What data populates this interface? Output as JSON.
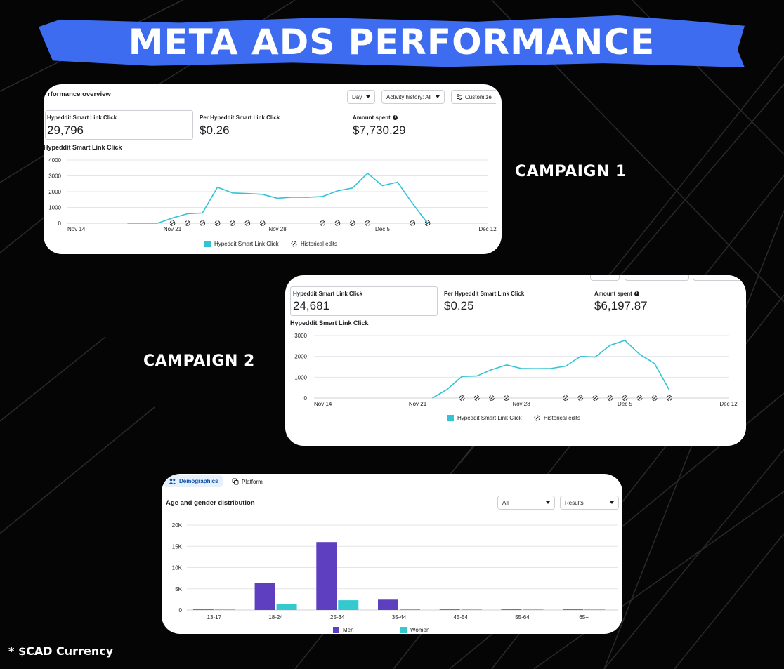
{
  "title": "META ADS PERFORMANCE",
  "footnote": "* $CAD Currency",
  "colors": {
    "accent": "#3d6cf0",
    "line": "#34c3d5",
    "men": "#5e3fc0",
    "women": "#34c9cf"
  },
  "campaign1": {
    "label": "CAMPAIGN 1",
    "overview_title": "rformance overview",
    "controls": {
      "day": "Day",
      "activity": "Activity history: All",
      "customize": "Customize"
    },
    "metrics": [
      {
        "label": "Hypeddit Smart Link Click",
        "value": "29,796"
      },
      {
        "label": "Per Hypeddit Smart Link Click",
        "value": "$0.26"
      },
      {
        "label": "Amount spent",
        "value": "$7,730.29",
        "info_icon": "info-icon"
      }
    ],
    "chart_title": "Hypeddit Smart Link Click",
    "legend": {
      "series": "Hypeddit Smart Link Click",
      "edits": "Historical edits"
    },
    "chart_data": {
      "type": "line",
      "y_ticks": [
        "0",
        "1000",
        "2000",
        "3000",
        "4000"
      ],
      "x_tick_labels": [
        "Nov 14",
        "Nov 21",
        "Nov 28",
        "Dec 5",
        "Dec 12"
      ],
      "ylim": [
        0,
        4000
      ],
      "x": [
        "Nov 18",
        "Nov 19",
        "Nov 20",
        "Nov 21",
        "Nov 22",
        "Nov 23",
        "Nov 24",
        "Nov 25",
        "Nov 26",
        "Nov 27",
        "Nov 28",
        "Nov 29",
        "Nov 30",
        "Dec 1",
        "Dec 2",
        "Dec 3",
        "Dec 4",
        "Dec 5",
        "Dec 6",
        "Dec 7",
        "Dec 8"
      ],
      "series": [
        {
          "name": "Hypeddit Smart Link Click",
          "values": [
            0,
            0,
            0,
            330,
            600,
            650,
            2280,
            1920,
            1880,
            1830,
            1580,
            1650,
            1640,
            1690,
            2050,
            2230,
            3160,
            2380,
            2600,
            1250,
            0
          ]
        }
      ],
      "edit_markers": [
        "Nov 21",
        "Nov 22",
        "Nov 23",
        "Nov 24",
        "Nov 25",
        "Nov 26",
        "Nov 27",
        "Dec 1",
        "Dec 2",
        "Dec 3",
        "Dec 4",
        "Dec 7",
        "Dec 8"
      ]
    }
  },
  "campaign2": {
    "label": "CAMPAIGN 2",
    "metrics": [
      {
        "label": "Hypeddit Smart Link Click",
        "value": "24,681"
      },
      {
        "label": "Per Hypeddit Smart Link Click",
        "value": "$0.25"
      },
      {
        "label": "Amount spent",
        "value": "$6,197.87",
        "info_icon": "info-icon"
      }
    ],
    "chart_title": "Hypeddit Smart Link Click",
    "legend": {
      "series": "Hypeddit Smart Link Click",
      "edits": "Historical edits"
    },
    "chart_data": {
      "type": "line",
      "y_ticks": [
        "0",
        "1000",
        "2000",
        "3000"
      ],
      "x_tick_labels": [
        "Nov 14",
        "Nov 21",
        "Nov 28",
        "Dec 5",
        "Dec 12"
      ],
      "ylim": [
        0,
        3000
      ],
      "x": [
        "Nov 22",
        "Nov 23",
        "Nov 24",
        "Nov 25",
        "Nov 26",
        "Nov 27",
        "Nov 28",
        "Nov 29",
        "Nov 30",
        "Dec 1",
        "Dec 2",
        "Dec 3",
        "Dec 4",
        "Dec 5",
        "Dec 6",
        "Dec 7",
        "Dec 8"
      ],
      "series": [
        {
          "name": "Hypeddit Smart Link Click",
          "values": [
            0,
            420,
            1040,
            1060,
            1360,
            1590,
            1420,
            1410,
            1420,
            1530,
            2000,
            1970,
            2530,
            2770,
            2100,
            1660,
            390
          ]
        }
      ],
      "edit_markers": [
        "Nov 24",
        "Nov 25",
        "Nov 26",
        "Nov 27",
        "Dec 1",
        "Dec 2",
        "Dec 3",
        "Dec 4",
        "Dec 5",
        "Dec 6",
        "Dec 7",
        "Dec 8"
      ]
    }
  },
  "demographics": {
    "tabs": [
      "Demographics",
      "Platform"
    ],
    "section_title": "Age and gender distribution",
    "filters": {
      "all": "All",
      "results": "Results"
    },
    "chart_data": {
      "type": "bar",
      "categories": [
        "13-17",
        "18-24",
        "25-34",
        "35-44",
        "45-54",
        "55-64",
        "65+"
      ],
      "y_ticks": [
        "0",
        "5K",
        "10K",
        "15K",
        "20K"
      ],
      "ylim": [
        0,
        20000
      ],
      "series": [
        {
          "name": "Men",
          "values": [
            50,
            6400,
            16000,
            2600,
            80,
            40,
            30
          ]
        },
        {
          "name": "Women",
          "values": [
            40,
            1350,
            2300,
            250,
            60,
            30,
            20
          ]
        }
      ]
    }
  }
}
